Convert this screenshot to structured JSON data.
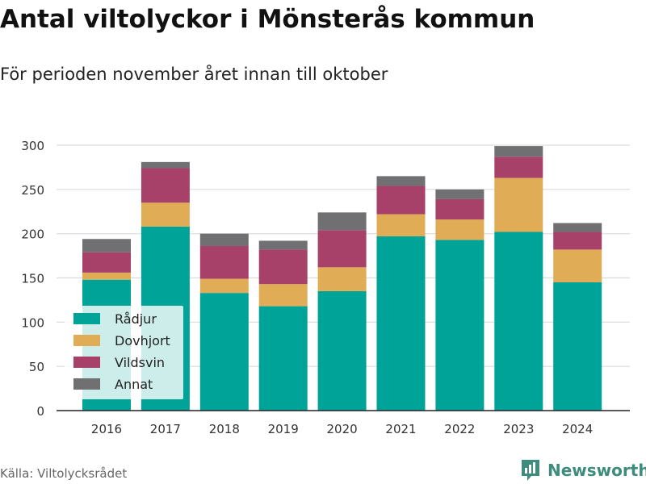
{
  "title": "Antal viltolyckor i Mönsterås kommun",
  "subtitle": "För perioden november året innan till oktober",
  "source": "Källa: Viltolycksrådet",
  "brand": {
    "name": "Newsworthy",
    "icon": "bar-chart-logo-icon",
    "color": "#3e8c7d"
  },
  "chart_data": {
    "type": "bar",
    "stacked": true,
    "categories": [
      "2016",
      "2017",
      "2018",
      "2019",
      "2020",
      "2021",
      "2022",
      "2023",
      "2024"
    ],
    "series": [
      {
        "name": "Rådjur",
        "color": "#00a398",
        "values": [
          148,
          208,
          133,
          118,
          135,
          197,
          193,
          202,
          145
        ]
      },
      {
        "name": "Dovhjort",
        "color": "#e0ac56",
        "values": [
          8,
          27,
          16,
          25,
          27,
          25,
          23,
          61,
          37
        ]
      },
      {
        "name": "Vildsvin",
        "color": "#a8416a",
        "values": [
          23,
          39,
          37,
          39,
          42,
          32,
          23,
          24,
          20
        ]
      },
      {
        "name": "Annat",
        "color": "#707073",
        "values": [
          15,
          7,
          14,
          10,
          20,
          11,
          11,
          12,
          10
        ]
      }
    ],
    "ylim": [
      0,
      300
    ],
    "yticks": [
      0,
      50,
      100,
      150,
      200,
      250,
      300
    ],
    "grid": true,
    "legend": "bottom-left"
  }
}
